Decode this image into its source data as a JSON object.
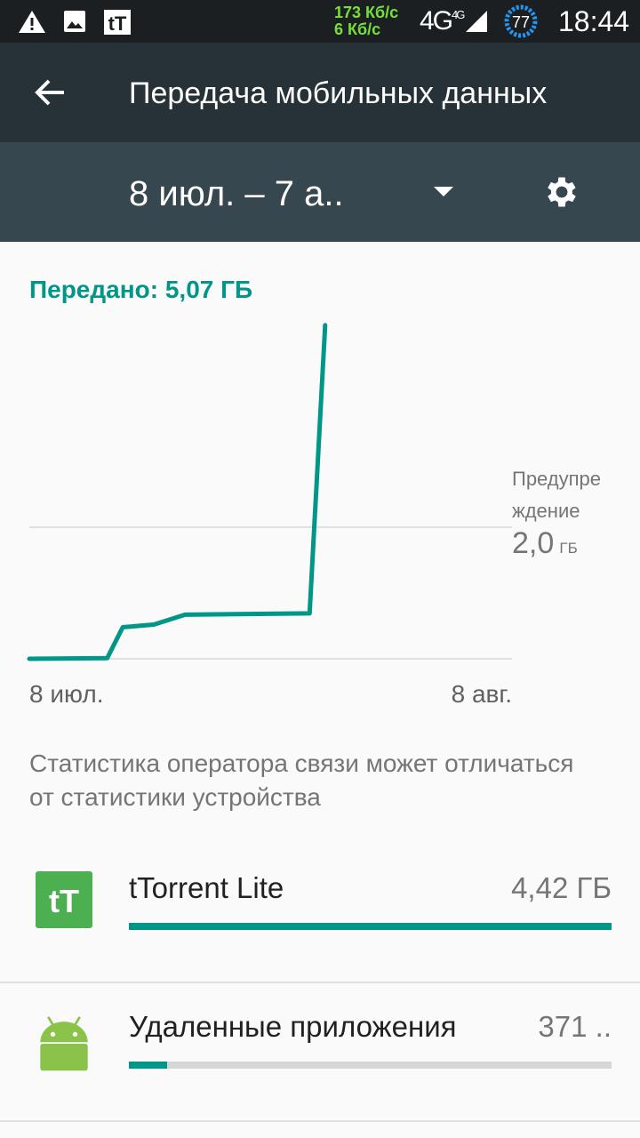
{
  "status_bar": {
    "icons": [
      "warning-icon",
      "image-icon",
      "ttorrent-icon",
      "signal-icon",
      "battery-icon"
    ],
    "speed_down": "173 Кб/с",
    "speed_up": "6 Кб/с",
    "network": "4G",
    "network_sup": "4G",
    "battery": "77",
    "time": "18:44"
  },
  "app_bar": {
    "title": "Передача мобильных данных",
    "back_icon": "arrow-back-icon"
  },
  "cycle": {
    "range": "8 июл. – 7 а..",
    "dropdown_icon": "caret-down-icon",
    "settings_icon": "gear-icon"
  },
  "usage": {
    "total": "Передано: 5,07 ГБ"
  },
  "chart_data": {
    "type": "line",
    "x_start": "8 июл.",
    "x_end": "8 авг.",
    "x": [
      "07-08",
      "07-13",
      "07-14",
      "07-16",
      "07-18",
      "07-26",
      "07-27"
    ],
    "values": [
      0,
      0.01,
      0.48,
      0.52,
      0.67,
      0.69,
      5.07
    ],
    "ylabel_unit": "ГБ",
    "ylim": [
      0,
      5.07
    ],
    "warning": {
      "label": "Предупреждение",
      "label_line1": "Предупре",
      "label_line2": "ждение",
      "value": "2,0",
      "unit": "ГБ",
      "gb": 2.0
    },
    "color": "#009688"
  },
  "note": "Статистика оператора связи может отличаться от статистики устройства",
  "apps": [
    {
      "name": "tTorrent Lite",
      "size": "4,42 ГБ",
      "icon": "ttorrent-app-icon",
      "fraction": 1.0
    },
    {
      "name": "Удаленные приложения",
      "size": "371 ..",
      "icon": "android-icon",
      "fraction": 0.08
    }
  ],
  "colors": {
    "accent": "#009688",
    "app_bar": "#263238",
    "sub_bar": "#37474f"
  }
}
